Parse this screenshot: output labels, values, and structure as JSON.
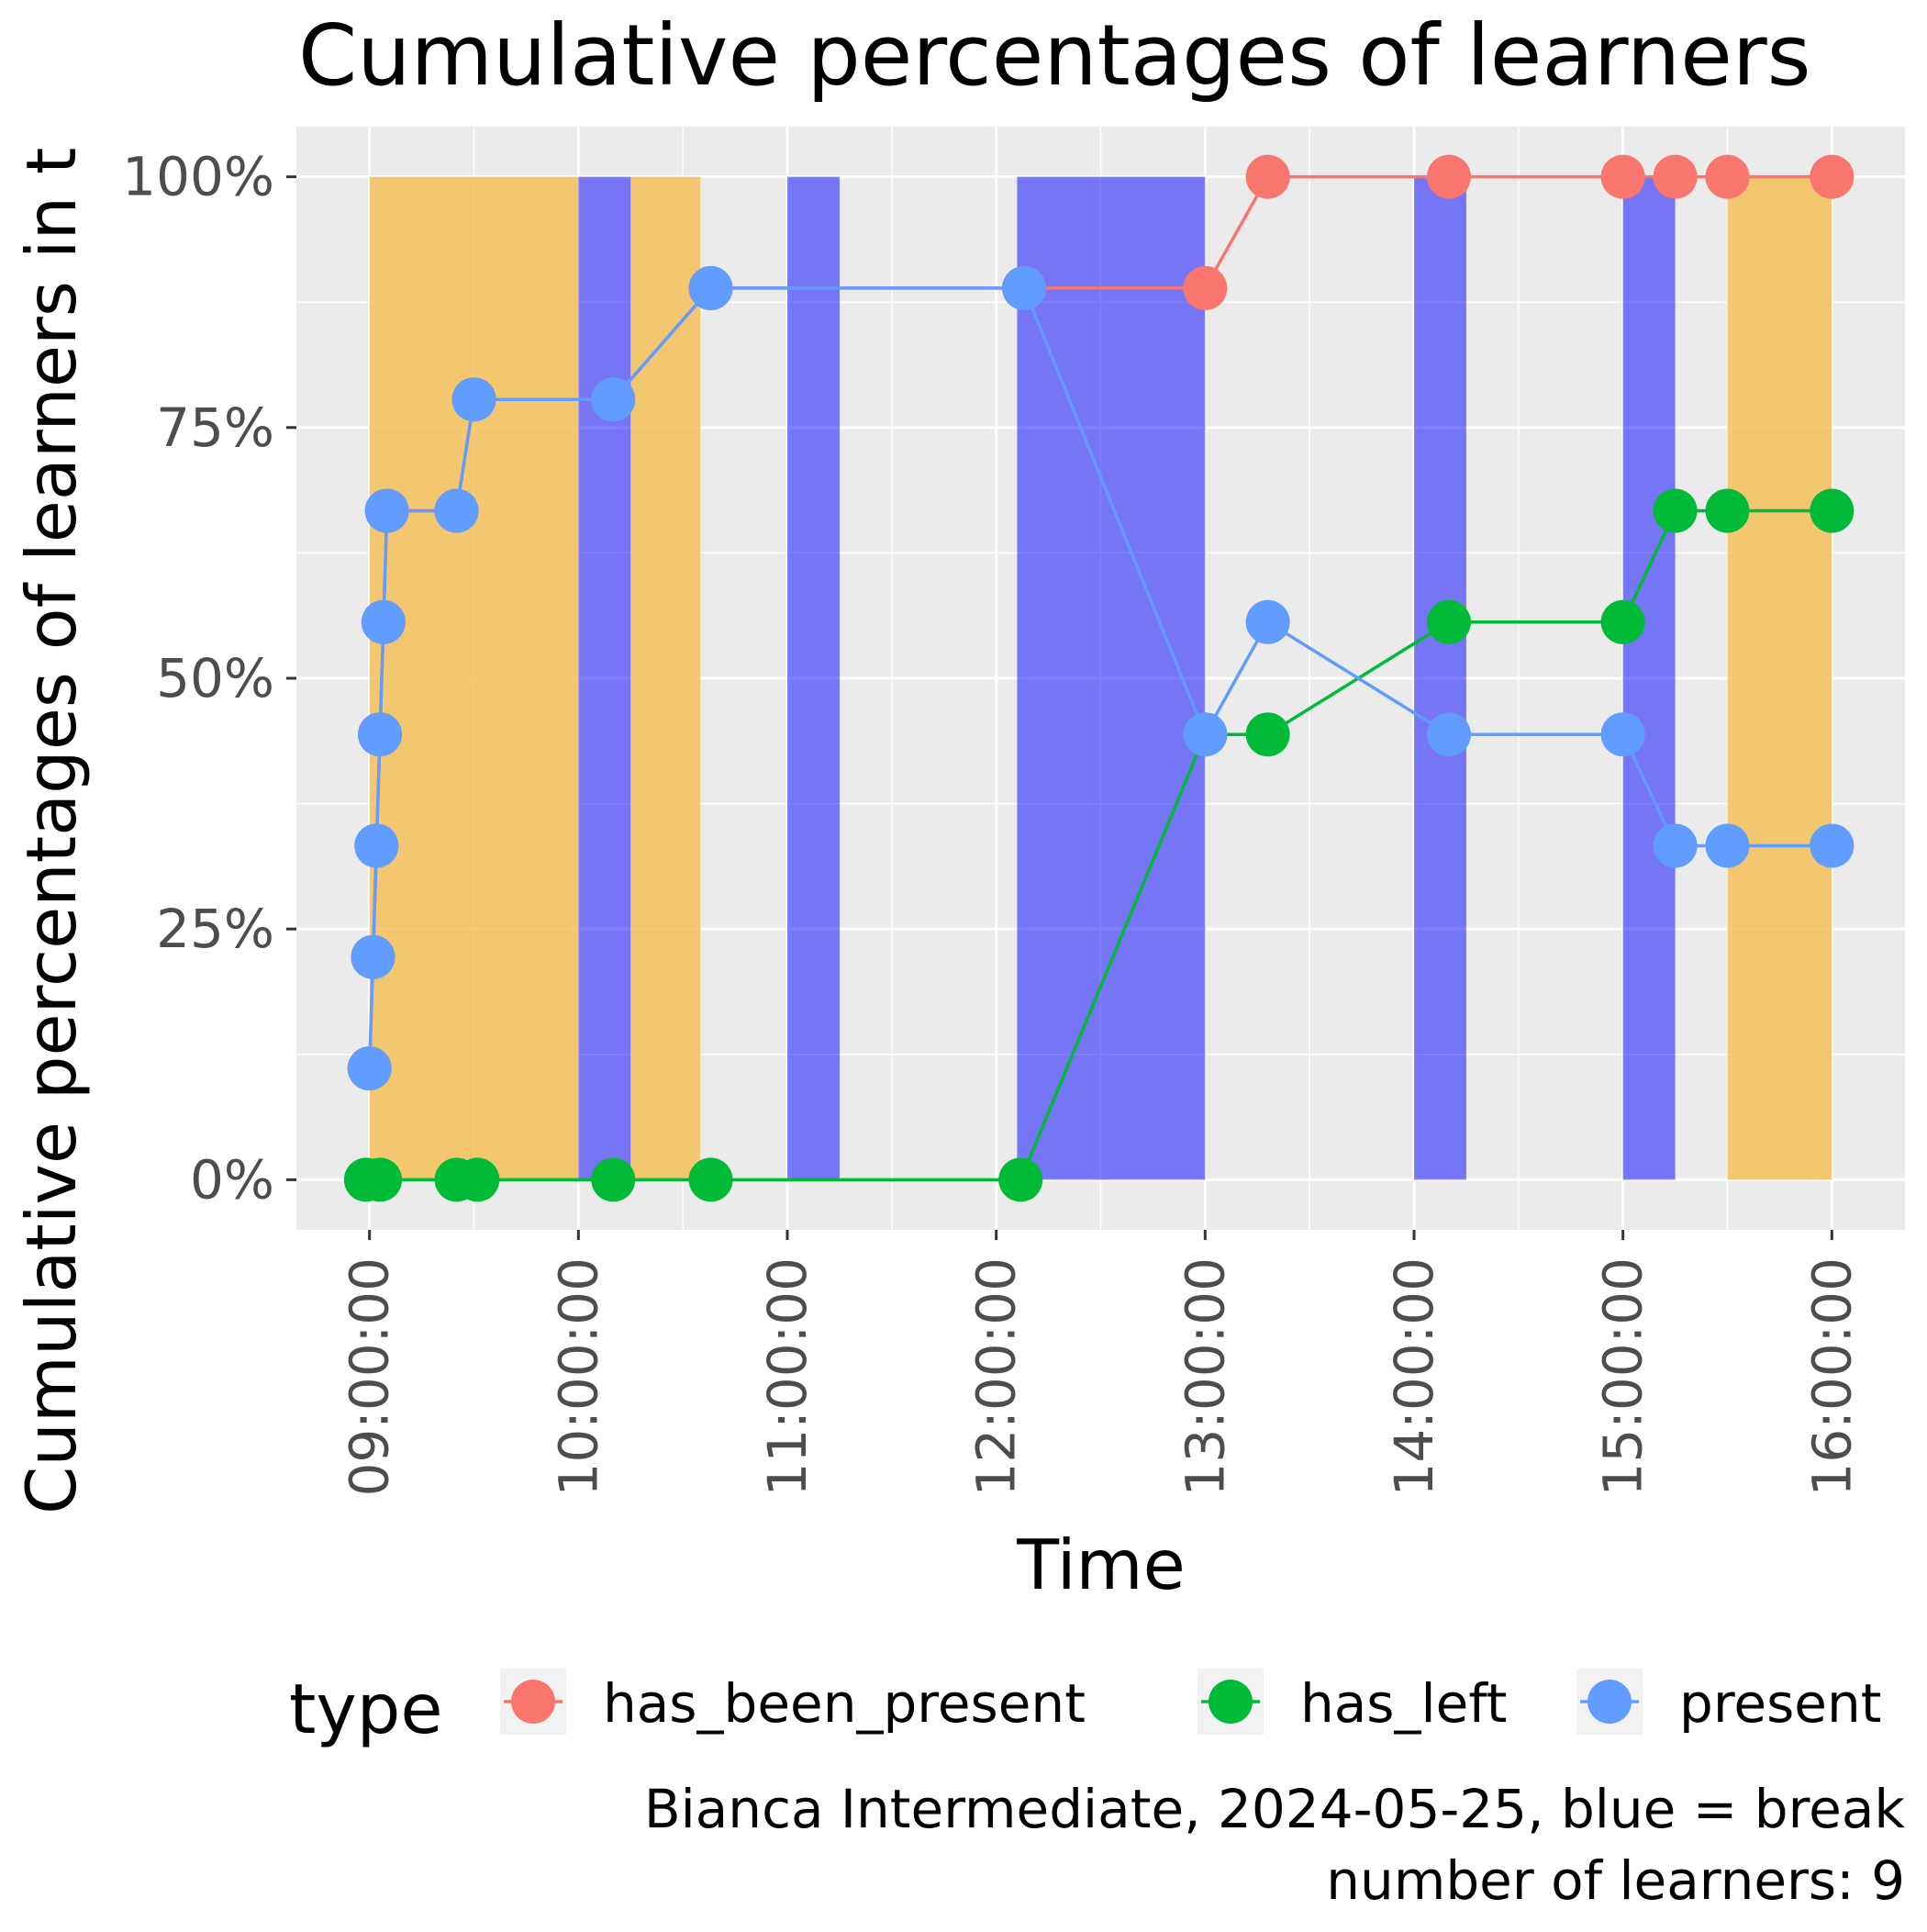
{
  "chart_data": {
    "type": "line",
    "title": "Cumulative percentages of learners",
    "xlabel": "Time",
    "ylabel": "Cumulative percentages of learners in t",
    "x_ticks": [
      "09:00:00",
      "10:00:00",
      "11:00:00",
      "12:00:00",
      "13:00:00",
      "14:00:00",
      "15:00:00",
      "16:00:00"
    ],
    "y_ticks": [
      "0%",
      "25%",
      "50%",
      "75%",
      "100%"
    ],
    "xlim": [
      "08:39:00",
      "16:21:00"
    ],
    "ylim": [
      -0.05,
      1.05
    ],
    "grid": true,
    "legend_title": "type",
    "legend_position": "bottom",
    "series": [
      {
        "name": "has_been_present",
        "color": "#F8766D",
        "points": [
          {
            "t": "09:00:00",
            "y": 0.111
          },
          {
            "t": "09:01:00",
            "y": 0.222
          },
          {
            "t": "09:02:00",
            "y": 0.333
          },
          {
            "t": "09:03:00",
            "y": 0.444
          },
          {
            "t": "09:04:00",
            "y": 0.556
          },
          {
            "t": "09:05:00",
            "y": 0.667
          },
          {
            "t": "09:25:00",
            "y": 0.667
          },
          {
            "t": "09:30:00",
            "y": 0.778
          },
          {
            "t": "10:10:00",
            "y": 0.778
          },
          {
            "t": "10:38:00",
            "y": 0.889
          },
          {
            "t": "12:08:00",
            "y": 0.889
          },
          {
            "t": "13:00:00",
            "y": 0.889
          },
          {
            "t": "13:18:00",
            "y": 1.0
          },
          {
            "t": "14:10:00",
            "y": 1.0
          },
          {
            "t": "15:00:00",
            "y": 1.0
          },
          {
            "t": "15:15:00",
            "y": 1.0
          },
          {
            "t": "15:30:00",
            "y": 1.0
          },
          {
            "t": "16:00:00",
            "y": 1.0
          }
        ]
      },
      {
        "name": "has_left",
        "color": "#00BA38",
        "points": [
          {
            "t": "08:59:00",
            "y": 0.0
          },
          {
            "t": "09:03:00",
            "y": 0.0
          },
          {
            "t": "09:25:00",
            "y": 0.0
          },
          {
            "t": "09:31:00",
            "y": 0.0
          },
          {
            "t": "10:10:00",
            "y": 0.0
          },
          {
            "t": "10:38:00",
            "y": 0.0
          },
          {
            "t": "12:07:00",
            "y": 0.0
          },
          {
            "t": "13:00:00",
            "y": 0.444
          },
          {
            "t": "13:18:00",
            "y": 0.444
          },
          {
            "t": "14:10:00",
            "y": 0.556
          },
          {
            "t": "15:00:00",
            "y": 0.556
          },
          {
            "t": "15:15:00",
            "y": 0.667
          },
          {
            "t": "15:30:00",
            "y": 0.667
          },
          {
            "t": "16:00:00",
            "y": 0.667
          }
        ]
      },
      {
        "name": "present",
        "color": "#619CFF",
        "points": [
          {
            "t": "09:00:00",
            "y": 0.111
          },
          {
            "t": "09:01:00",
            "y": 0.222
          },
          {
            "t": "09:02:00",
            "y": 0.333
          },
          {
            "t": "09:03:00",
            "y": 0.444
          },
          {
            "t": "09:04:00",
            "y": 0.556
          },
          {
            "t": "09:05:00",
            "y": 0.667
          },
          {
            "t": "09:25:00",
            "y": 0.667
          },
          {
            "t": "09:30:00",
            "y": 0.778
          },
          {
            "t": "10:10:00",
            "y": 0.778
          },
          {
            "t": "10:38:00",
            "y": 0.889
          },
          {
            "t": "12:08:00",
            "y": 0.889
          },
          {
            "t": "13:00:00",
            "y": 0.444
          },
          {
            "t": "13:18:00",
            "y": 0.556
          },
          {
            "t": "14:10:00",
            "y": 0.444
          },
          {
            "t": "15:00:00",
            "y": 0.444
          },
          {
            "t": "15:15:00",
            "y": 0.333
          },
          {
            "t": "15:30:00",
            "y": 0.333
          },
          {
            "t": "16:00:00",
            "y": 0.333
          }
        ]
      }
    ],
    "shaded_regions": [
      {
        "kind": "session",
        "color": "#F5C05A",
        "start": "09:00:00",
        "end": "10:00:00"
      },
      {
        "kind": "session",
        "color": "#F5C05A",
        "start": "10:15:00",
        "end": "10:35:00"
      },
      {
        "kind": "session",
        "color": "#F5C05A",
        "start": "15:30:00",
        "end": "16:00:00"
      },
      {
        "kind": "break",
        "color": "#0000FF",
        "start": "10:00:00",
        "end": "10:15:00"
      },
      {
        "kind": "break",
        "color": "#0000FF",
        "start": "11:00:00",
        "end": "11:15:00"
      },
      {
        "kind": "break",
        "color": "#0000FF",
        "start": "12:06:00",
        "end": "13:00:00"
      },
      {
        "kind": "break",
        "color": "#0000FF",
        "start": "14:00:00",
        "end": "14:15:00"
      },
      {
        "kind": "break",
        "color": "#0000FF",
        "start": "15:00:00",
        "end": "15:15:00"
      }
    ],
    "caption_lines": [
      "Bianca Intermediate, 2024-05-25, blue = break",
      "number of learners: 9"
    ]
  },
  "colors": {
    "panel_background": "#EBEBEB",
    "gridline": "#FFFFFF",
    "legend_key_background": "#F2F2F2"
  }
}
